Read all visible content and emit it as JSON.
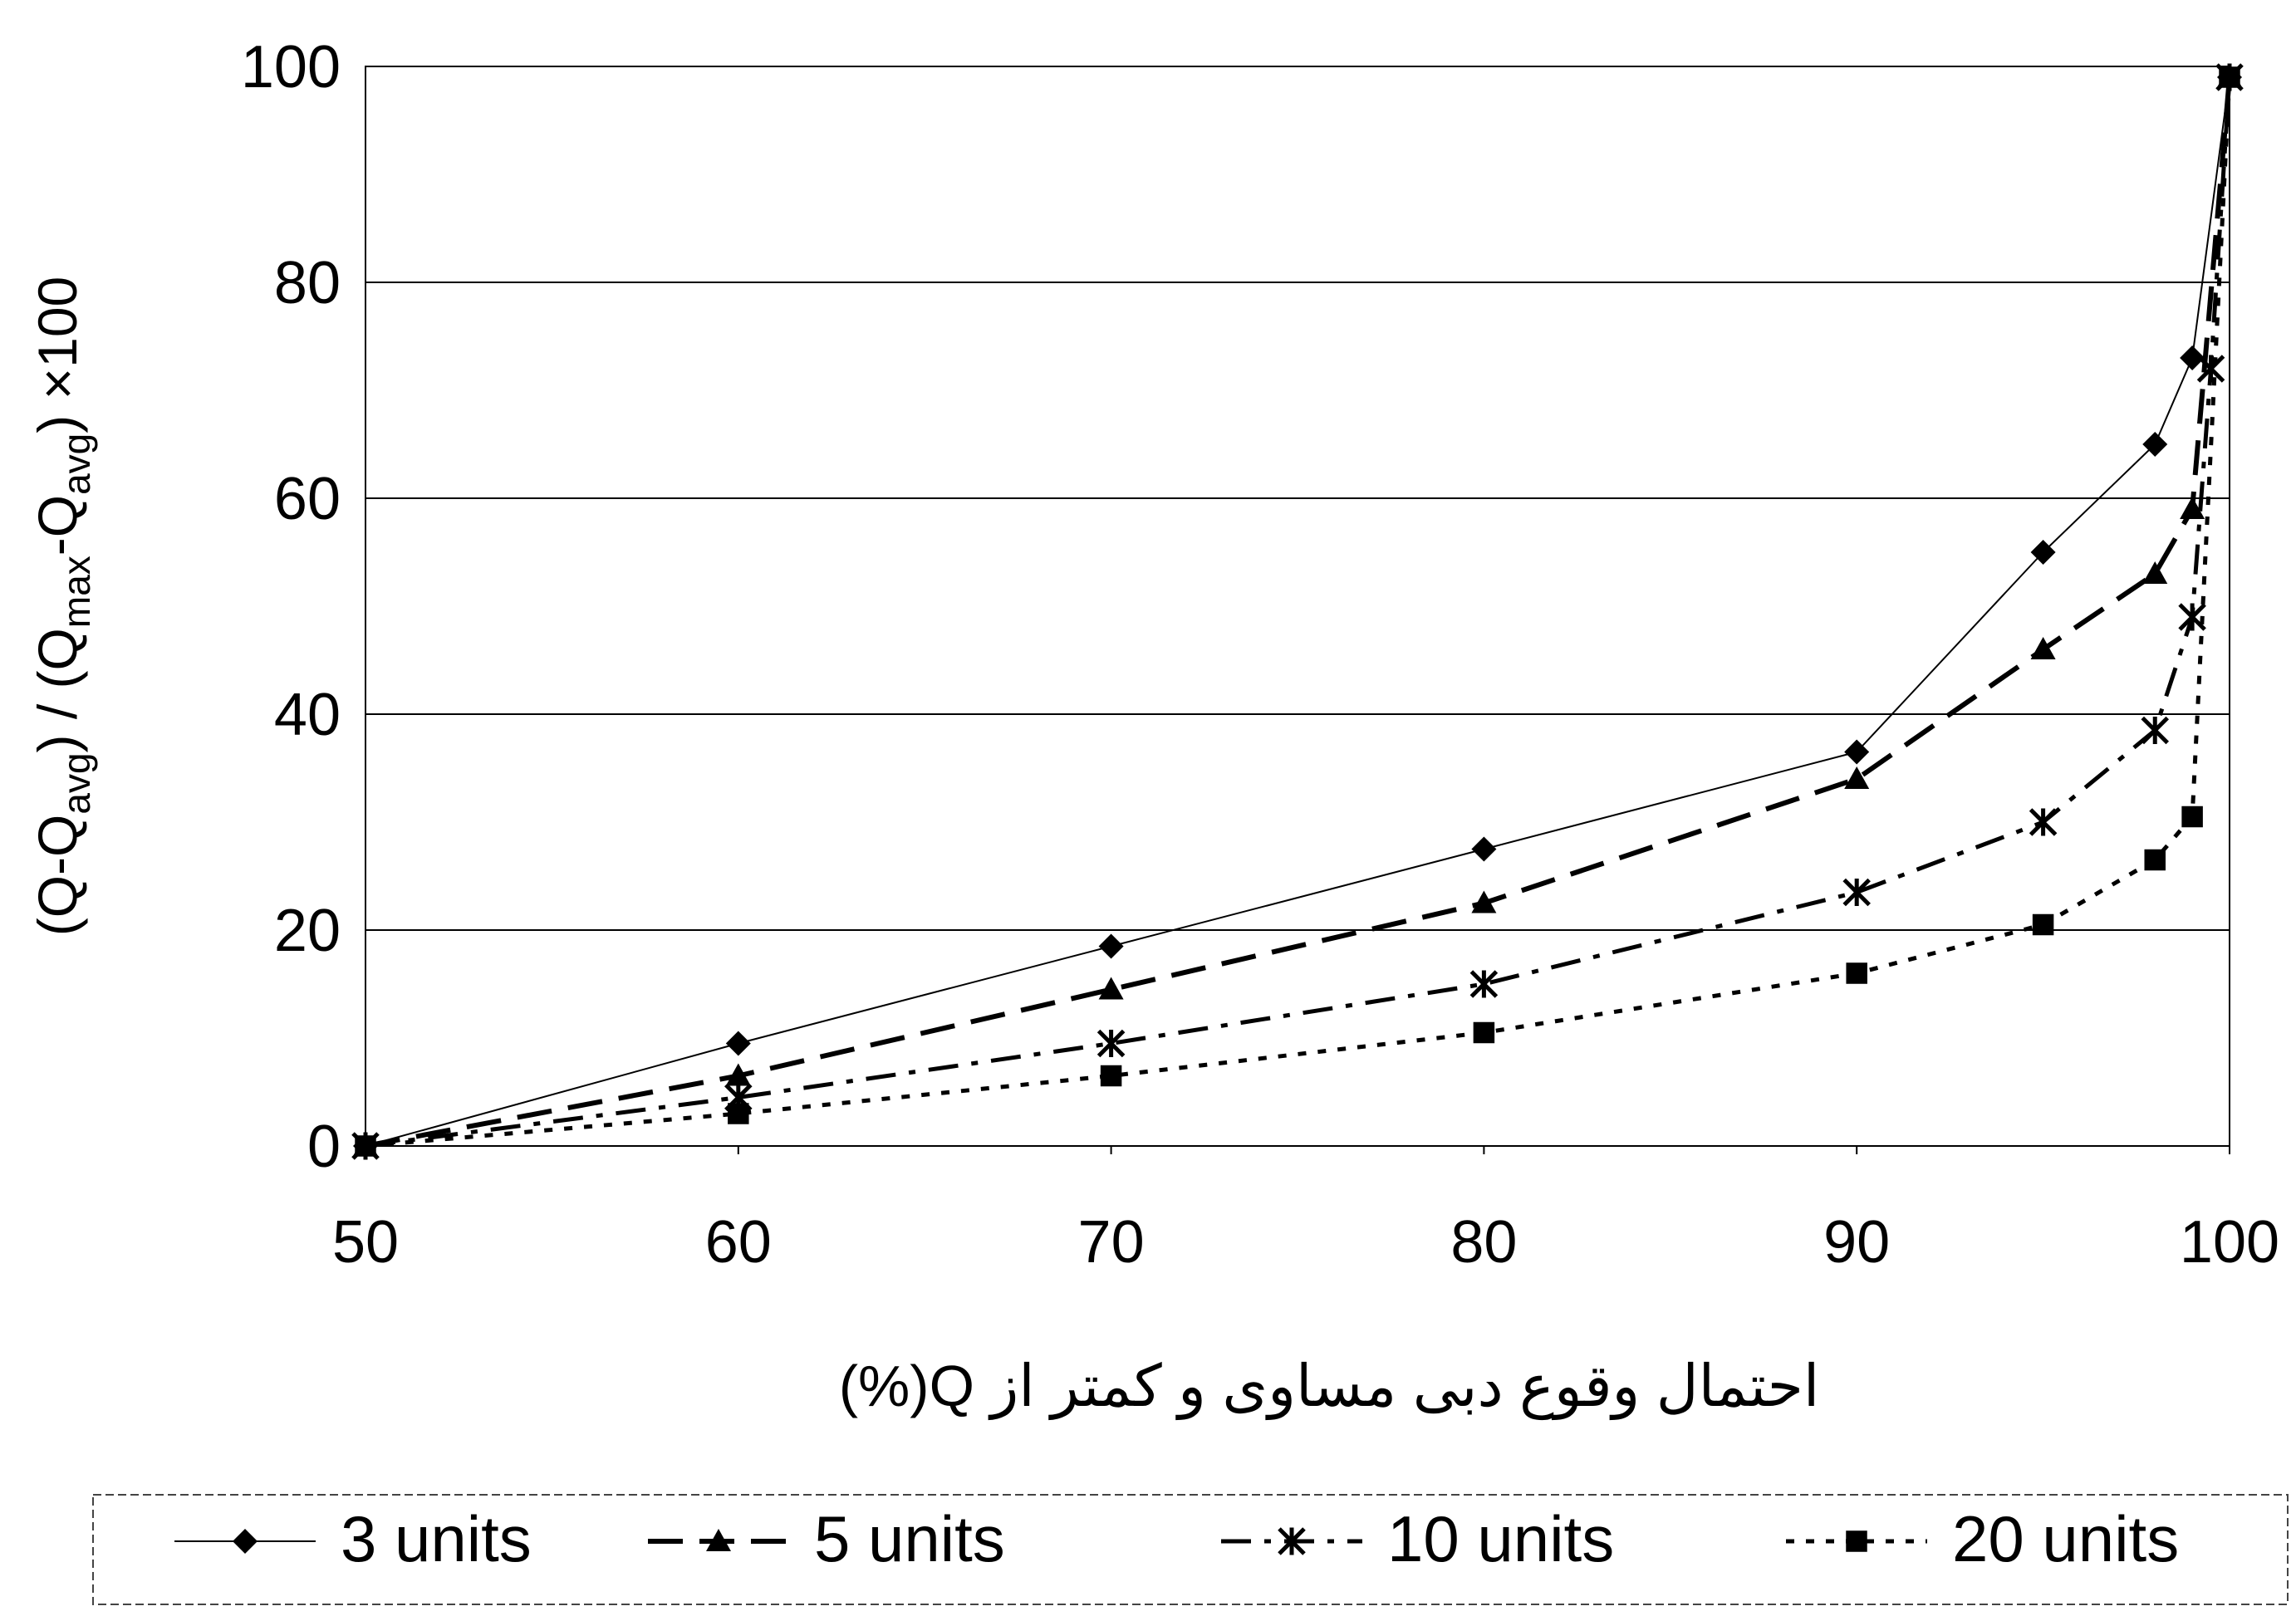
{
  "chart_data": {
    "type": "line",
    "ylabel": {
      "part1": "(Q-Q",
      "sub1": "avg",
      "part2": ") / (Q",
      "sub2": "max",
      "part3": "-Q",
      "sub3": "avg",
      "part4": ") ×100"
    },
    "xlabel": "احتمال وقوع دبی مساوی و کمتر از Q(%)",
    "xlim": [
      50,
      100
    ],
    "ylim": [
      0,
      100
    ],
    "xticks": [
      "50",
      "60",
      "70",
      "80",
      "90",
      "100"
    ],
    "yticks": [
      "0",
      "20",
      "40",
      "60",
      "80",
      "100"
    ],
    "grid": "horizontal",
    "legend_position": "bottom",
    "series": [
      {
        "name": "3 units",
        "marker": "diamond",
        "line": "solid-thin",
        "x": [
          50,
          60,
          70,
          80,
          90,
          95,
          98,
          99,
          100
        ],
        "y": [
          0,
          9.5,
          18.5,
          27.5,
          36.5,
          55,
          65,
          73,
          99
        ]
      },
      {
        "name": "5 units",
        "marker": "triangle",
        "line": "long-dash",
        "x": [
          50,
          60,
          70,
          80,
          90,
          95,
          98,
          99,
          100
        ],
        "y": [
          0,
          6.5,
          14.5,
          22.5,
          34,
          46,
          53,
          59,
          99
        ]
      },
      {
        "name": "10 units",
        "marker": "star",
        "line": "dash-dot",
        "x": [
          50,
          60,
          70,
          80,
          90,
          95,
          98,
          99,
          99.5,
          100
        ],
        "y": [
          0,
          4.5,
          9.5,
          15,
          23.5,
          30,
          38.5,
          49,
          72,
          99
        ]
      },
      {
        "name": "20 units",
        "marker": "square",
        "line": "dotted",
        "x": [
          50,
          60,
          70,
          80,
          90,
          95,
          98,
          99,
          100
        ],
        "y": [
          0,
          3,
          6.5,
          10.5,
          16,
          20.5,
          26.5,
          30.5,
          99
        ]
      }
    ]
  }
}
